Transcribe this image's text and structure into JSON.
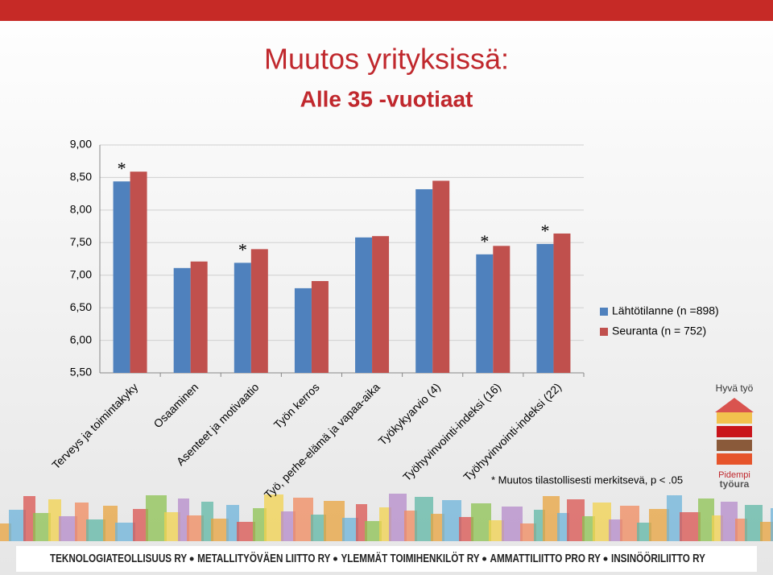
{
  "chart_data": {
    "type": "bar",
    "title": "Muutos yrityksissä:",
    "subtitle": "Alle 35 -vuotiaat",
    "categories": [
      "Terveys ja toimintakyky",
      "Osaaminen",
      "Asenteet ja motivaatio",
      "Työn kerros",
      "Työ, perhe-elämä ja vapaa-aika",
      "Työkykyarvio (4)",
      "Työhyvinvointi-indeksi (16)",
      "Työhyvinvointi-indeksi (22)"
    ],
    "series": [
      {
        "name": "Lähtötilanne (n =898)",
        "color": "#4f81bd",
        "values": [
          8.44,
          7.11,
          7.19,
          6.8,
          7.58,
          8.32,
          7.32,
          7.48
        ]
      },
      {
        "name": "Seuranta (n = 752)",
        "color": "#c0504d",
        "values": [
          8.59,
          7.21,
          7.4,
          6.91,
          7.6,
          8.45,
          7.45,
          7.64
        ]
      }
    ],
    "significance_marker": "*",
    "significant": [
      true,
      false,
      true,
      false,
      false,
      false,
      true,
      true
    ],
    "footnote": "* Muutos tilastollisesti merkitsevä, p < .05",
    "ylim": [
      5.5,
      9
    ],
    "yticks": [
      {
        "value": 5.5,
        "label": "5,50"
      },
      {
        "value": 6,
        "label": "6,00"
      },
      {
        "value": 6.5,
        "label": "6,50"
      },
      {
        "value": 7,
        "label": "7,00"
      },
      {
        "value": 7.5,
        "label": "7,50"
      },
      {
        "value": 8,
        "label": "8,00"
      },
      {
        "value": 8.5,
        "label": "8,50"
      },
      {
        "value": 9,
        "label": "9,00"
      }
    ],
    "grid": true,
    "legend": "right"
  },
  "logo": {
    "top": "Hyvä työ",
    "bottom_1": "Pidempi",
    "bottom_2": "työura"
  },
  "footer": {
    "organizations": [
      "TEKNOLOGIATEOLLISUUS RY",
      "METALLITYÖVÄEN LIITTO RY",
      "YLEMMÄT TOIMIHENKILÖT RY",
      "AMMATTILIITTO PRO RY",
      "INSINÖÖRILIITTO RY"
    ]
  }
}
